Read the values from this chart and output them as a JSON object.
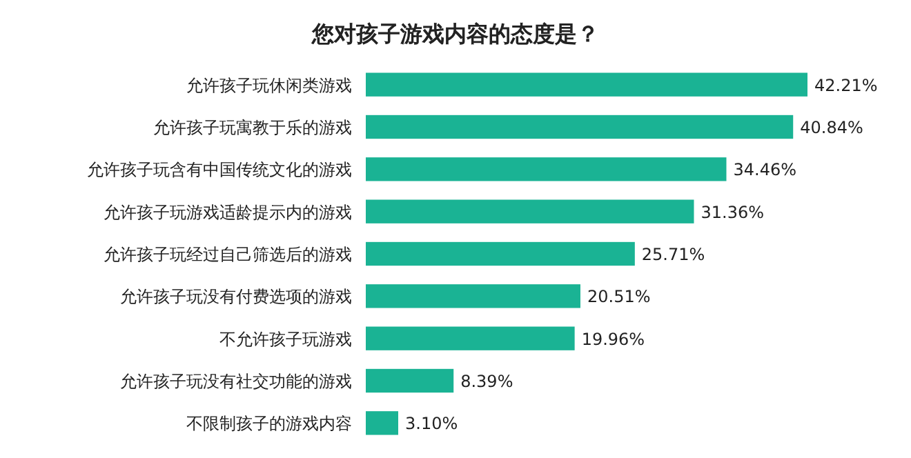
{
  "chart_data": {
    "type": "bar",
    "orientation": "horizontal",
    "title": "您对孩子游戏内容的态度是？",
    "categories": [
      "允许孩子玩休闲类游戏",
      "允许孩子玩寓教于乐的游戏",
      "允许孩子玩含有中国传统文化的游戏",
      "允许孩子玩游戏适龄提示内的游戏",
      "允许孩子玩经过自己筛选后的游戏",
      "允许孩子玩没有付费选项的游戏",
      "不允许孩子玩游戏",
      "允许孩子玩没有社交功能的游戏",
      "不限制孩子的游戏内容"
    ],
    "values": [
      42.21,
      40.84,
      34.46,
      31.36,
      25.71,
      20.51,
      19.96,
      8.39,
      3.1
    ],
    "value_labels": [
      "42.21%",
      "40.84%",
      "34.46%",
      "31.36%",
      "25.71%",
      "20.51%",
      "19.96%",
      "8.39%",
      "3.10%"
    ],
    "color": "#1ab394"
  }
}
